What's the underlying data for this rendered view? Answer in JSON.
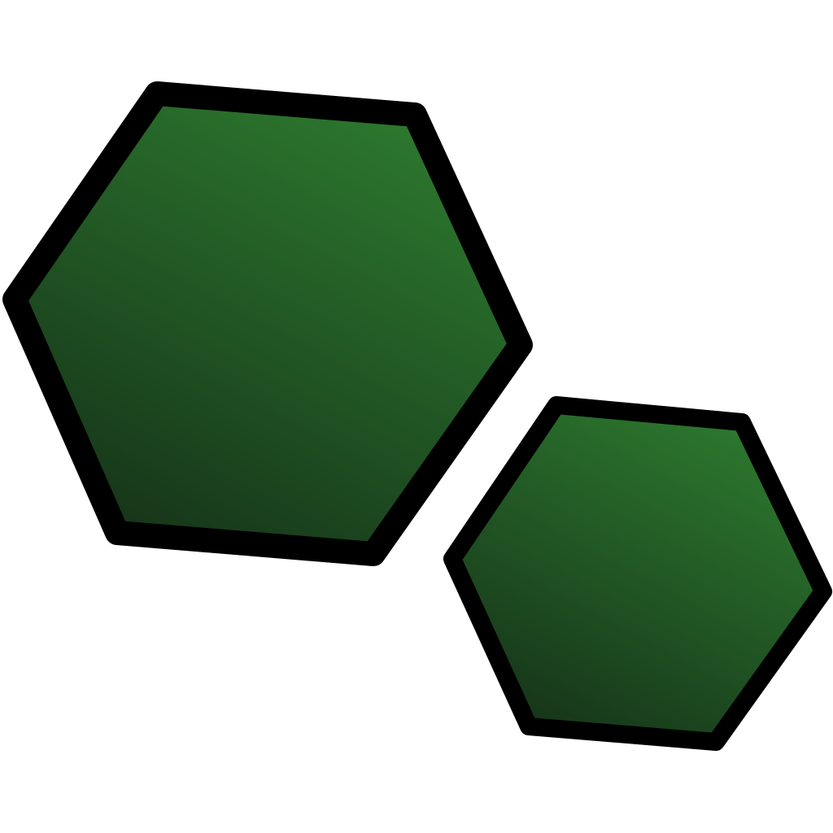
{
  "icon": {
    "name": "hexagons-icon",
    "shape_count": 2,
    "colors": {
      "background": "#ffffff",
      "outline": "#000000",
      "fill_light": "#2d7a2f",
      "fill_dark": "#163419"
    }
  }
}
